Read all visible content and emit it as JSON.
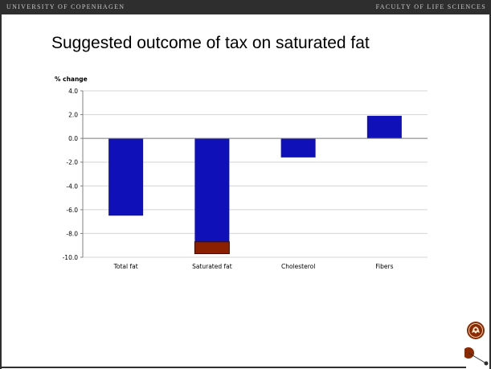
{
  "header": {
    "left_text": "UNIVERSITY OF COPENHAGEN",
    "right_text": "FACULTY OF LIFE SCIENCES"
  },
  "slide": {
    "title": "Suggested outcome of tax on saturated fat"
  },
  "colors": {
    "header_bar": "#2e2e2e",
    "bar_primary": "#1010b8",
    "bar_extra": "#8b2000",
    "logo_brown": "#8b2a00"
  },
  "icons": {
    "seal": "university-seal-icon",
    "ornament": "circle-ornament-icon"
  },
  "chart_data": {
    "type": "bar",
    "ylabel": "% change",
    "xlabel": "",
    "ylim": [
      -10,
      4
    ],
    "yticks": [
      4.0,
      2.0,
      0.0,
      -2.0,
      -4.0,
      -6.0,
      -8.0,
      -10.0
    ],
    "ytick_labels": [
      "4.0",
      "2.0",
      "0.0",
      "-2.0",
      "-4.0",
      "-6.0",
      "-8.0",
      "-10.0"
    ],
    "grid": true,
    "categories": [
      "Total fat",
      "Saturated fat",
      "Cholesterol",
      "Fibers"
    ],
    "series": [
      {
        "values": [
          -6.5,
          -8.7,
          -1.6,
          1.9
        ]
      },
      {
        "values": [
          0,
          -1.0,
          0,
          0
        ]
      }
    ]
  }
}
